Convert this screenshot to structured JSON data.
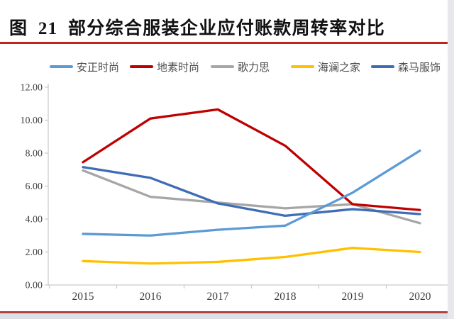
{
  "title": "图 21 部分综合服装企业应付账款周转率对比",
  "accent_rule_top_color": "#c22424",
  "accent_rule_bottom_color": "#ae4242",
  "chart_data": {
    "type": "line",
    "categories": [
      "2015",
      "2016",
      "2017",
      "2018",
      "2019",
      "2020"
    ],
    "series": [
      {
        "name": "安正时尚",
        "color": "#5B9BD5",
        "values": [
          3.1,
          3.0,
          3.35,
          3.6,
          5.6,
          8.15
        ]
      },
      {
        "name": "地素时尚",
        "color": "#C00000",
        "values": [
          7.45,
          10.1,
          10.65,
          8.45,
          4.9,
          4.55
        ]
      },
      {
        "name": "歌力思",
        "color": "#A6A6A6",
        "values": [
          6.95,
          5.35,
          5.0,
          4.65,
          4.9,
          3.75
        ]
      },
      {
        "name": "海澜之家",
        "color": "#FFC000",
        "values": [
          1.45,
          1.3,
          1.4,
          1.7,
          2.25,
          2.0
        ]
      },
      {
        "name": "森马服饰",
        "color": "#3F6DB5",
        "values": [
          7.15,
          6.5,
          4.95,
          4.2,
          4.6,
          4.3
        ]
      }
    ],
    "ylim": [
      0,
      12
    ],
    "ytick_step": 2,
    "ytick_labels": [
      "0.00",
      "2.00",
      "4.00",
      "6.00",
      "8.00",
      "10.00",
      "12.00"
    ],
    "legend_position": "top",
    "grid": false,
    "title": "",
    "xlabel": "",
    "ylabel": ""
  }
}
